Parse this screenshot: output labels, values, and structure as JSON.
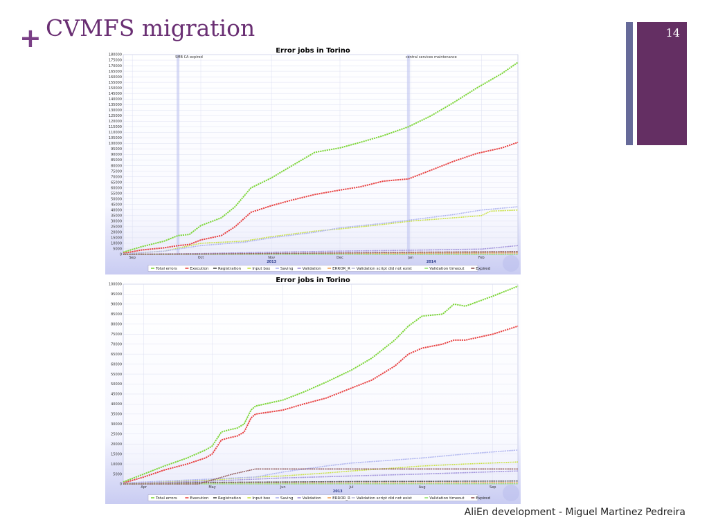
{
  "slide": {
    "title": "CVMFS migration",
    "plus_symbol": "+",
    "page_number": "14",
    "footer": "AliEn development - Miguel Martinez Pedreira",
    "accent_color": "#7a3f86",
    "sidebar_color": "#642f63",
    "sidebar_thin_color": "#666a99"
  },
  "chart_data": [
    {
      "type": "line",
      "title": "Error jobs in Torino",
      "xlabel": "",
      "ylabel": "",
      "ylim": [
        0,
        180000
      ],
      "yticks": [
        0,
        5000,
        10000,
        15000,
        20000,
        25000,
        30000,
        35000,
        40000,
        45000,
        50000,
        55000,
        60000,
        65000,
        70000,
        75000,
        80000,
        85000,
        90000,
        95000,
        100000,
        105000,
        110000,
        115000,
        120000,
        125000,
        130000,
        135000,
        140000,
        145000,
        150000,
        155000,
        160000,
        165000,
        170000,
        175000,
        180000
      ],
      "x_ticks": [
        {
          "label": "Sep",
          "date": "2013-09-01"
        },
        {
          "label": "Oct",
          "date": "2013-10-01"
        },
        {
          "label": "Nov",
          "date": "2013-11-01"
        },
        {
          "label": "Dec",
          "date": "2013-12-01"
        },
        {
          "label": "Jan",
          "date": "2014-01-01"
        },
        {
          "label": "Feb",
          "date": "2014-02-01"
        }
      ],
      "xlim": [
        "2013-08-28",
        "2014-02-17"
      ],
      "year_labels": [
        {
          "label": "2013",
          "date": "2013-11-01"
        },
        {
          "label": "2014",
          "date": "2014-01-10"
        }
      ],
      "annotations": [
        {
          "text": "SMB CA expired",
          "date": "2013-09-21"
        },
        {
          "text": "central services maintenance",
          "date": "2013-12-31"
        }
      ],
      "grid": true,
      "legend_position": "bottom",
      "series": [
        {
          "name": "Total errors",
          "color": "#7ed63a",
          "x": [
            "2013-08-28",
            "2013-09-05",
            "2013-09-15",
            "2013-09-21",
            "2013-09-26",
            "2013-10-01",
            "2013-10-10",
            "2013-10-16",
            "2013-10-23",
            "2013-11-01",
            "2013-11-10",
            "2013-11-20",
            "2013-12-01",
            "2013-12-10",
            "2013-12-20",
            "2013-12-31",
            "2014-01-10",
            "2014-01-20",
            "2014-01-30",
            "2014-02-10",
            "2014-02-17"
          ],
          "y": [
            2000,
            7000,
            12000,
            17000,
            18000,
            26000,
            33000,
            43000,
            60000,
            69000,
            80000,
            92000,
            96000,
            101000,
            107000,
            115000,
            125000,
            137000,
            150000,
            163000,
            173000
          ]
        },
        {
          "name": "Execution",
          "color": "#e84545",
          "x": [
            "2013-08-28",
            "2013-09-05",
            "2013-09-15",
            "2013-09-21",
            "2013-09-26",
            "2013-10-01",
            "2013-10-10",
            "2013-10-16",
            "2013-10-23",
            "2013-11-01",
            "2013-11-10",
            "2013-11-20",
            "2013-12-01",
            "2013-12-10",
            "2013-12-20",
            "2013-12-31",
            "2014-01-10",
            "2014-01-20",
            "2014-01-30",
            "2014-02-10",
            "2014-02-17"
          ],
          "y": [
            1000,
            4000,
            6000,
            8000,
            9000,
            13000,
            17000,
            25000,
            38000,
            44000,
            49000,
            54000,
            58000,
            61000,
            66000,
            68000,
            76000,
            84000,
            91000,
            96000,
            101000
          ]
        },
        {
          "name": "Registration",
          "color": "#444444",
          "x": [
            "2013-08-28",
            "2013-10-01",
            "2013-11-01",
            "2013-12-01",
            "2014-01-01",
            "2014-02-17"
          ],
          "y": [
            200,
            500,
            800,
            1000,
            1200,
            1500
          ]
        },
        {
          "name": "Input box",
          "color": "#c8e03c",
          "x": [
            "2013-08-28",
            "2013-09-15",
            "2013-10-01",
            "2013-10-20",
            "2013-11-01",
            "2013-11-20",
            "2013-12-01",
            "2013-12-20",
            "2014-01-01",
            "2014-01-20",
            "2014-02-01",
            "2014-02-05",
            "2014-02-17"
          ],
          "y": [
            500,
            3000,
            10000,
            12000,
            16000,
            21000,
            23000,
            27000,
            30000,
            33000,
            35000,
            39000,
            40000
          ]
        },
        {
          "name": "Saving",
          "color": "#aab0ee",
          "x": [
            "2013-08-28",
            "2013-09-15",
            "2013-10-01",
            "2013-10-20",
            "2013-11-01",
            "2013-11-20",
            "2013-12-01",
            "2013-12-20",
            "2014-01-01",
            "2014-01-20",
            "2014-02-01",
            "2014-02-17"
          ],
          "y": [
            500,
            3000,
            8000,
            11000,
            15000,
            20000,
            24000,
            28000,
            31000,
            36000,
            40000,
            43000
          ]
        },
        {
          "name": "Validation",
          "color": "#9a8bd8",
          "x": [
            "2013-08-28",
            "2013-10-01",
            "2013-11-01",
            "2013-12-01",
            "2014-01-01",
            "2014-02-01",
            "2014-02-17"
          ],
          "y": [
            200,
            800,
            2000,
            3000,
            3800,
            4800,
            8000
          ]
        },
        {
          "name": "ERROR_R",
          "color": "#f0a050",
          "x": [
            "2013-08-28",
            "2013-10-01",
            "2013-11-01",
            "2013-12-01",
            "2014-01-01",
            "2014-02-17"
          ],
          "y": [
            100,
            300,
            600,
            900,
            1100,
            1300
          ]
        },
        {
          "name": "Validation script did not exist",
          "color": "#b8b8d0",
          "x": [
            "2013-08-28",
            "2014-02-17"
          ],
          "y": [
            50,
            100
          ]
        },
        {
          "name": "Validation timeout",
          "color": "#90e070",
          "x": [
            "2013-08-28",
            "2014-02-17"
          ],
          "y": [
            50,
            150
          ]
        },
        {
          "name": "Expired",
          "color": "#8b5050",
          "x": [
            "2013-08-28",
            "2013-10-01",
            "2013-11-01",
            "2013-12-01",
            "2014-01-01",
            "2014-02-17"
          ],
          "y": [
            100,
            400,
            900,
            1400,
            2000,
            2600
          ]
        }
      ]
    },
    {
      "type": "line",
      "title": "Error jobs in Torino",
      "xlabel": "",
      "ylabel": "",
      "ylim": [
        0,
        100000
      ],
      "yticks": [
        0,
        5000,
        10000,
        15000,
        20000,
        25000,
        30000,
        35000,
        40000,
        45000,
        50000,
        55000,
        60000,
        65000,
        70000,
        75000,
        80000,
        85000,
        90000,
        95000,
        100000
      ],
      "x_ticks": [
        {
          "label": "Apr",
          "date": "2013-04-01"
        },
        {
          "label": "May",
          "date": "2013-05-01"
        },
        {
          "label": "Jun",
          "date": "2013-06-01"
        },
        {
          "label": "Jul",
          "date": "2013-07-01"
        },
        {
          "label": "Aug",
          "date": "2013-08-01"
        },
        {
          "label": "Sep",
          "date": "2013-09-01"
        }
      ],
      "xlim": [
        "2013-03-23",
        "2013-09-12"
      ],
      "year_labels": [
        {
          "label": "2013",
          "date": "2013-06-25"
        }
      ],
      "grid": true,
      "legend_position": "bottom",
      "series": [
        {
          "name": "Total errors",
          "color": "#7ed63a",
          "x": [
            "2013-03-23",
            "2013-04-01",
            "2013-04-10",
            "2013-04-20",
            "2013-04-28",
            "2013-05-01",
            "2013-05-05",
            "2013-05-08",
            "2013-05-12",
            "2013-05-15",
            "2013-05-18",
            "2013-05-20",
            "2013-06-01",
            "2013-06-10",
            "2013-06-20",
            "2013-07-01",
            "2013-07-10",
            "2013-07-20",
            "2013-07-26",
            "2013-08-01",
            "2013-08-10",
            "2013-08-15",
            "2013-08-20",
            "2013-09-01",
            "2013-09-12"
          ],
          "y": [
            1000,
            5000,
            9000,
            13000,
            17000,
            19000,
            26000,
            27000,
            28000,
            30000,
            37000,
            39000,
            42000,
            46000,
            51000,
            57000,
            63000,
            72000,
            79000,
            84000,
            85000,
            90000,
            89000,
            94000,
            99000
          ]
        },
        {
          "name": "Execution",
          "color": "#e84545",
          "x": [
            "2013-03-23",
            "2013-04-01",
            "2013-04-10",
            "2013-04-20",
            "2013-04-28",
            "2013-05-01",
            "2013-05-05",
            "2013-05-08",
            "2013-05-12",
            "2013-05-15",
            "2013-05-18",
            "2013-05-20",
            "2013-06-01",
            "2013-06-10",
            "2013-06-20",
            "2013-07-01",
            "2013-07-10",
            "2013-07-20",
            "2013-07-26",
            "2013-08-01",
            "2013-08-10",
            "2013-08-15",
            "2013-08-20",
            "2013-09-01",
            "2013-09-12"
          ],
          "y": [
            500,
            3500,
            7000,
            10000,
            13000,
            15000,
            22000,
            23000,
            24000,
            26000,
            33000,
            35000,
            37000,
            40000,
            43000,
            48000,
            52000,
            59000,
            65000,
            68000,
            70000,
            72000,
            72000,
            75000,
            79000
          ]
        },
        {
          "name": "Registration",
          "color": "#444444",
          "x": [
            "2013-03-23",
            "2013-05-01",
            "2013-06-01",
            "2013-07-01",
            "2013-08-01",
            "2013-09-12"
          ],
          "y": [
            300,
            800,
            1000,
            1200,
            1300,
            1500
          ]
        },
        {
          "name": "Input box",
          "color": "#c8e03c",
          "x": [
            "2013-03-23",
            "2013-04-10",
            "2013-05-01",
            "2013-05-20",
            "2013-06-01",
            "2013-06-20",
            "2013-07-01",
            "2013-07-20",
            "2013-08-01",
            "2013-08-20",
            "2013-09-12"
          ],
          "y": [
            300,
            1000,
            2000,
            3500,
            4000,
            5500,
            6500,
            8000,
            9000,
            10000,
            11000
          ]
        },
        {
          "name": "Saving",
          "color": "#aab0ee",
          "x": [
            "2013-03-23",
            "2013-04-10",
            "2013-05-01",
            "2013-05-20",
            "2013-06-01",
            "2013-06-20",
            "2013-07-01",
            "2013-07-20",
            "2013-08-01",
            "2013-08-20",
            "2013-09-12"
          ],
          "y": [
            500,
            1500,
            2500,
            3500,
            6000,
            9000,
            10500,
            12000,
            13000,
            15000,
            17000
          ]
        },
        {
          "name": "Validation",
          "color": "#9a8bd8",
          "x": [
            "2013-03-23",
            "2013-05-01",
            "2013-06-01",
            "2013-07-01",
            "2013-08-01",
            "2013-09-12"
          ],
          "y": [
            200,
            1500,
            3000,
            4000,
            5000,
            6500
          ]
        },
        {
          "name": "ERROR_R",
          "color": "#f0a050",
          "x": [
            "2013-03-23",
            "2013-06-01",
            "2013-09-12"
          ],
          "y": [
            100,
            400,
            700
          ]
        },
        {
          "name": "Validation script did not exist",
          "color": "#b8b8d0",
          "x": [
            "2013-03-23",
            "2013-09-12"
          ],
          "y": [
            50,
            100
          ]
        },
        {
          "name": "Validation timeout",
          "color": "#90e070",
          "x": [
            "2013-03-23",
            "2013-09-12"
          ],
          "y": [
            50,
            150
          ]
        },
        {
          "name": "Expired",
          "color": "#8b5050",
          "x": [
            "2013-03-23",
            "2013-04-25",
            "2013-05-01",
            "2013-05-10",
            "2013-05-20",
            "2013-09-12"
          ],
          "y": [
            0,
            0,
            2000,
            5000,
            7500,
            7500
          ]
        }
      ]
    }
  ]
}
